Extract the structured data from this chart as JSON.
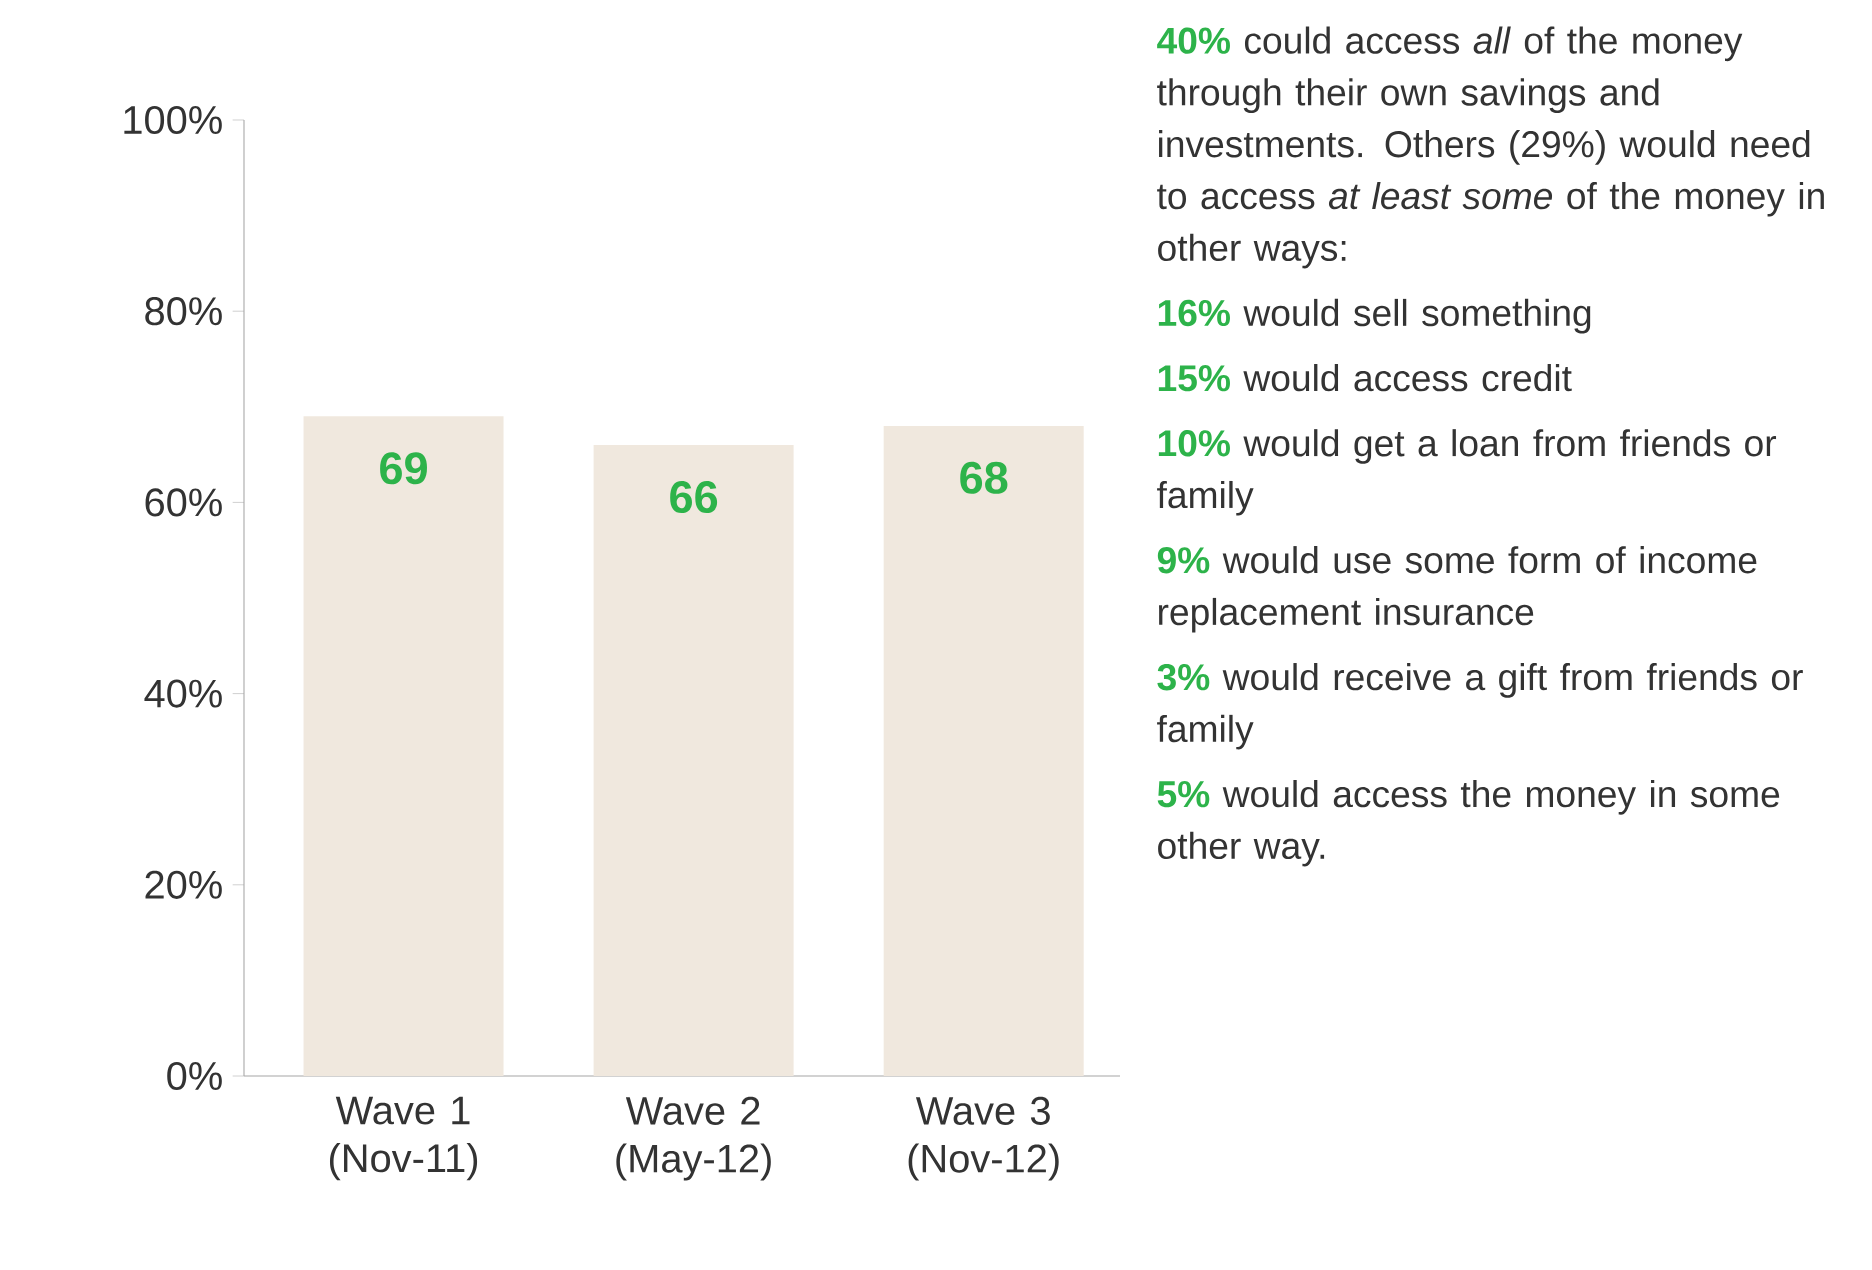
{
  "chart_data": {
    "type": "bar",
    "categories": [
      "Wave 1 (Nov-11)",
      "Wave 2 (May-12)",
      "Wave 3 (Nov-12)"
    ],
    "values": [
      69,
      66,
      68
    ],
    "color": "#f0e8de",
    "data_labels": true,
    "ylim": [
      0,
      100
    ],
    "yticks": [
      {
        "value": 0,
        "label": "0%"
      },
      {
        "value": 20,
        "label": "20%"
      },
      {
        "value": 40,
        "label": "40%"
      },
      {
        "value": 60,
        "label": "60%"
      },
      {
        "value": 80,
        "label": "80%"
      },
      {
        "value": 100,
        "label": "100%"
      }
    ],
    "annotations": [
      "40%",
      "could access *all* of the money through their own savings and investments. Others (29%) would need to access *at least some* of the money in other ways:",
      "16%",
      "would sell something",
      "15%",
      "would access credit",
      "10%",
      "would get a loan from friends or family",
      "9%",
      "would use some form of income replacement insurance",
      "3%",
      "would receive a gift from friends or family",
      "5%",
      "would access the money in some other way."
    ]
  }
}
